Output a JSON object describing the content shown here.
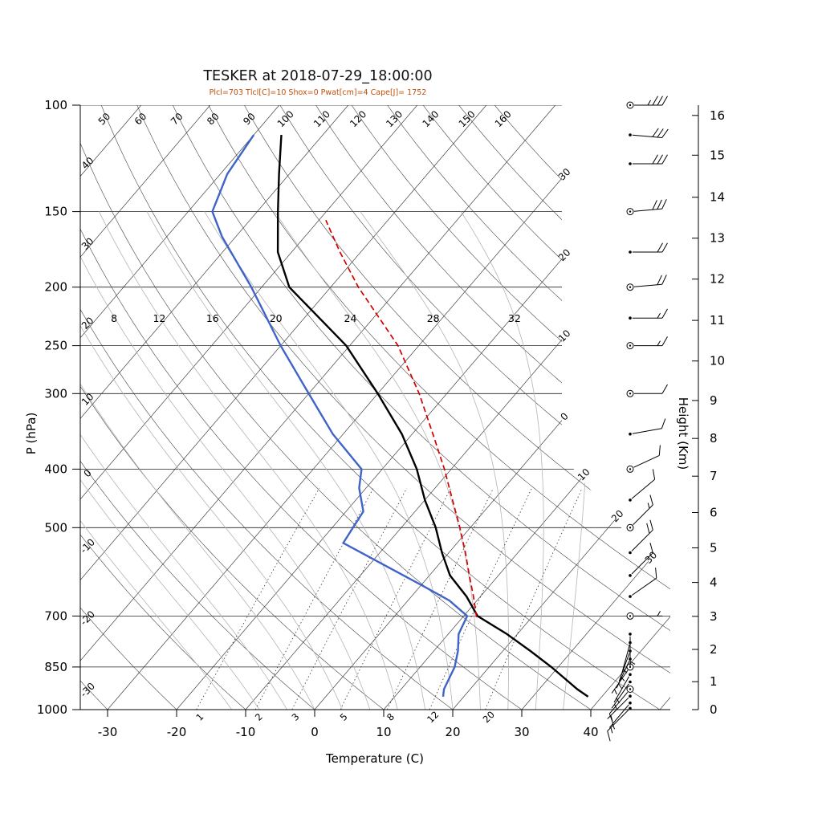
{
  "title": "TESKER at 2018-07-29_18:00:00",
  "subtitle": "Plcl=703 Tlcl[C]=10 Shox=0 Pwat[cm]=4 Cape[J]= 1752",
  "axes": {
    "pressure_label": "P (hPa)",
    "temperature_label": "Temperature (C)",
    "height_label": "Height (Km)",
    "pressure_ticks": [
      100,
      150,
      200,
      250,
      300,
      400,
      500,
      700,
      850,
      1000
    ],
    "temperature_ticks": [
      -30,
      -20,
      -10,
      0,
      10,
      20,
      30,
      40
    ],
    "height_ticks_km": [
      0,
      1,
      2,
      3,
      4,
      5,
      6,
      7,
      8,
      9,
      10,
      11,
      12,
      13,
      14,
      15,
      16
    ]
  },
  "chart_data": {
    "type": "skewt",
    "station": "TESKER",
    "datetime": "2018-07-29_18:00:00",
    "indices": {
      "Plcl": 703,
      "Tlcl_C": 10,
      "Shox": 0,
      "Pwat_cm": 4,
      "Cape_J": 1752
    },
    "pressure_lim_hPa": [
      100,
      1000
    ],
    "isotherm_step_C": 10,
    "dry_adiabat_labels_C": [
      -30,
      -20,
      -10,
      0,
      10,
      20,
      30,
      40,
      50,
      60,
      70,
      80,
      90,
      100,
      110,
      120,
      130,
      140,
      150,
      160
    ],
    "isotherm_labels_right_C": [
      -30,
      -20,
      -10,
      0,
      10,
      20,
      30
    ],
    "moist_adiabat_labels_C": [
      8,
      12,
      16,
      20,
      24,
      28,
      32
    ],
    "moist_adiabats_drawn_C": [
      -12,
      -8,
      -4,
      0,
      4,
      8,
      12,
      16,
      20,
      24,
      28,
      32,
      36
    ],
    "mixing_ratio_lines_gkg": [
      1,
      2,
      3,
      5,
      8,
      12,
      20
    ],
    "temperature_profile": [
      [
        952,
        38
      ],
      [
        925,
        35.5
      ],
      [
        850,
        29
      ],
      [
        800,
        24
      ],
      [
        750,
        18.5
      ],
      [
        700,
        12
      ],
      [
        650,
        8
      ],
      [
        600,
        3
      ],
      [
        550,
        -1
      ],
      [
        500,
        -5
      ],
      [
        450,
        -10
      ],
      [
        400,
        -15
      ],
      [
        350,
        -21.5
      ],
      [
        300,
        -30
      ],
      [
        250,
        -40.5
      ],
      [
        200,
        -56
      ],
      [
        175,
        -62
      ],
      [
        150,
        -67
      ],
      [
        130,
        -71.5
      ],
      [
        112,
        -76
      ]
    ],
    "dewpoint_profile": [
      [
        952,
        17
      ],
      [
        925,
        16.2
      ],
      [
        850,
        15
      ],
      [
        800,
        13.5
      ],
      [
        750,
        11.5
      ],
      [
        700,
        10.5
      ],
      [
        660,
        6
      ],
      [
        625,
        0.5
      ],
      [
        530,
        -16.5
      ],
      [
        470,
        -17.5
      ],
      [
        430,
        -21
      ],
      [
        400,
        -23
      ],
      [
        350,
        -31.5
      ],
      [
        300,
        -40
      ],
      [
        250,
        -50
      ],
      [
        200,
        -61.5
      ],
      [
        165,
        -72
      ],
      [
        150,
        -76.5
      ],
      [
        130,
        -79
      ],
      [
        112,
        -80
      ]
    ],
    "parcel_profile": [
      [
        703,
        12
      ],
      [
        650,
        9
      ],
      [
        600,
        5.8
      ],
      [
        550,
        2.4
      ],
      [
        500,
        -1.5
      ],
      [
        450,
        -6
      ],
      [
        400,
        -11
      ],
      [
        350,
        -17
      ],
      [
        300,
        -24
      ],
      [
        250,
        -33
      ],
      [
        200,
        -46
      ],
      [
        175,
        -53
      ],
      [
        155,
        -59
      ]
    ],
    "winds": [
      {
        "p": 995,
        "speed_kt": 15,
        "dir_deg": 225,
        "marker": "dot"
      },
      {
        "p": 975,
        "speed_kt": 3,
        "dir_deg": 220,
        "marker": "dot"
      },
      {
        "p": 950,
        "speed_kt": 5,
        "dir_deg": 225,
        "marker": "dot"
      },
      {
        "p": 925,
        "speed_kt": 8,
        "dir_deg": 220,
        "marker": "circle"
      },
      {
        "p": 900,
        "speed_kt": 3,
        "dir_deg": 215,
        "marker": "dot"
      },
      {
        "p": 875,
        "speed_kt": 3,
        "dir_deg": 210,
        "marker": "dot"
      },
      {
        "p": 850,
        "speed_kt": 5,
        "dir_deg": 215,
        "marker": "circle"
      },
      {
        "p": 825,
        "speed_kt": 3,
        "dir_deg": 205,
        "marker": "dot"
      },
      {
        "p": 800,
        "speed_kt": 5,
        "dir_deg": 200,
        "marker": "dot"
      },
      {
        "p": 775,
        "speed_kt": 3,
        "dir_deg": 195,
        "marker": "dot"
      },
      {
        "p": 750,
        "speed_kt": 3,
        "dir_deg": 180,
        "marker": "dot"
      },
      {
        "p": 700,
        "speed_kt": 5,
        "dir_deg": 90,
        "marker": "circle"
      },
      {
        "p": 650,
        "speed_kt": 8,
        "dir_deg": 55,
        "marker": "dot"
      },
      {
        "p": 600,
        "speed_kt": 10,
        "dir_deg": 45,
        "marker": "dot"
      },
      {
        "p": 550,
        "speed_kt": 20,
        "dir_deg": 45,
        "marker": "dot"
      },
      {
        "p": 500,
        "speed_kt": 15,
        "dir_deg": 45,
        "marker": "circle"
      },
      {
        "p": 450,
        "speed_kt": 10,
        "dir_deg": 50,
        "marker": "dot"
      },
      {
        "p": 400,
        "speed_kt": 10,
        "dir_deg": 65,
        "marker": "circle"
      },
      {
        "p": 350,
        "speed_kt": 10,
        "dir_deg": 80,
        "marker": "dot"
      },
      {
        "p": 300,
        "speed_kt": 10,
        "dir_deg": 90,
        "marker": "circle"
      },
      {
        "p": 250,
        "speed_kt": 15,
        "dir_deg": 90,
        "marker": "circle"
      },
      {
        "p": 225,
        "speed_kt": 15,
        "dir_deg": 90,
        "marker": "dot"
      },
      {
        "p": 200,
        "speed_kt": 20,
        "dir_deg": 85,
        "marker": "circle"
      },
      {
        "p": 175,
        "speed_kt": 20,
        "dir_deg": 90,
        "marker": "dot"
      },
      {
        "p": 150,
        "speed_kt": 30,
        "dir_deg": 85,
        "marker": "circle"
      },
      {
        "p": 125,
        "speed_kt": 30,
        "dir_deg": 90,
        "marker": "dot"
      },
      {
        "p": 112,
        "speed_kt": 30,
        "dir_deg": 95,
        "marker": "dot"
      },
      {
        "p": 100,
        "speed_kt": 35,
        "dir_deg": 90,
        "marker": "circle"
      }
    ],
    "colors": {
      "temperature": "#000000",
      "dewpoint": "#3F63C8",
      "parcel": "#D40000",
      "subtitle": "#C14F08",
      "moist_adiabat": "#B4B4B4",
      "grid": "#333333"
    }
  }
}
